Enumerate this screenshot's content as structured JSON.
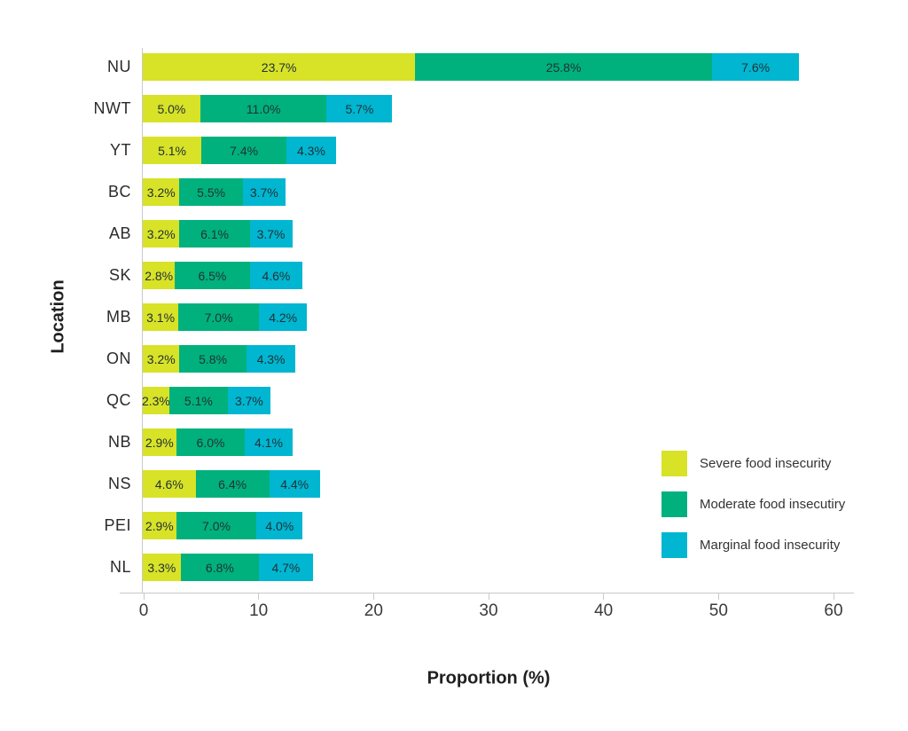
{
  "chart_data": {
    "type": "bar",
    "orientation": "horizontal",
    "stacked": true,
    "title": "",
    "xlabel": "Proportion (%)",
    "ylabel": "Location",
    "xlim": [
      0,
      60
    ],
    "x_ticks": [
      0,
      10,
      20,
      30,
      40,
      50,
      60
    ],
    "grid": false,
    "legend_position": "right-middle",
    "bar_label_format": "one_decimal_percent",
    "categories": [
      "NU",
      "NWT",
      "YT",
      "BC",
      "AB",
      "SK",
      "MB",
      "ON",
      "QC",
      "NB",
      "NS",
      "PEI",
      "NL"
    ],
    "series": [
      {
        "name": "Severe food insecurity",
        "color": "#d8e227",
        "values": [
          23.7,
          5.0,
          5.1,
          3.2,
          3.2,
          2.8,
          3.1,
          3.2,
          2.3,
          2.9,
          4.6,
          2.9,
          3.3
        ]
      },
      {
        "name": "Moderate food insecutiry",
        "color": "#00b17d",
        "values": [
          25.8,
          11.0,
          7.4,
          5.5,
          6.1,
          6.5,
          7.0,
          5.8,
          5.1,
          6.0,
          6.4,
          7.0,
          6.8
        ]
      },
      {
        "name": "Marginal food insecurity",
        "color": "#00b6d1",
        "values": [
          7.6,
          5.7,
          4.3,
          3.7,
          3.7,
          4.6,
          4.2,
          4.3,
          3.7,
          4.1,
          4.4,
          4.0,
          4.7
        ]
      }
    ]
  },
  "colors": {
    "axis_line": "#c9c9c9",
    "tick_text": "#3a3a3a",
    "bar_label_text": "#203237",
    "background": "#ffffff"
  }
}
